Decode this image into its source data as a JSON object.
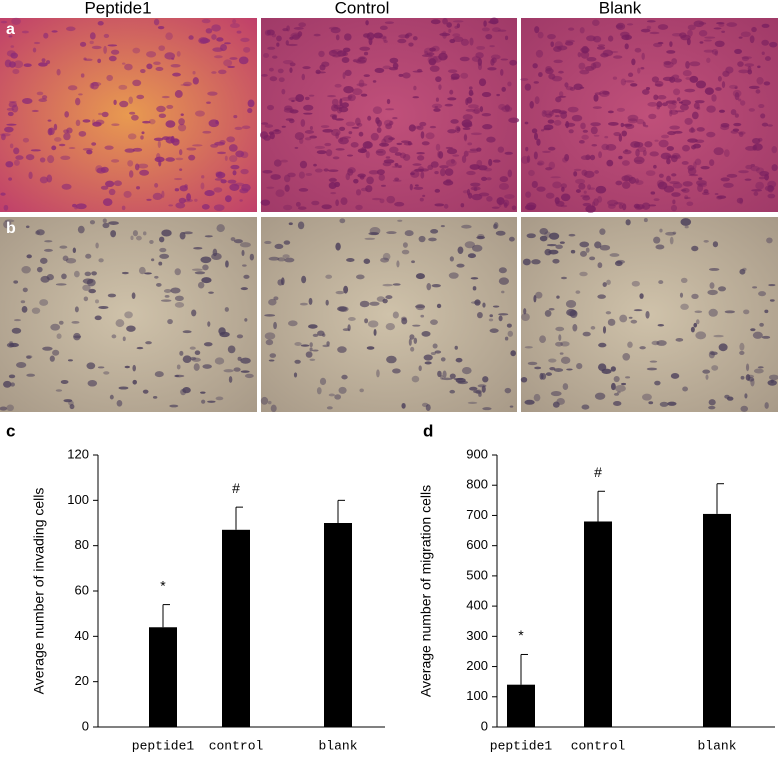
{
  "figure": {
    "column_labels": [
      "Peptide1",
      "Control",
      "Blank"
    ],
    "panel_labels": [
      "a",
      "b"
    ]
  },
  "chart_data": [
    {
      "type": "bar",
      "label": "c",
      "y_label": "Average number of invading cells",
      "categories": [
        "peptide1",
        "control",
        "blank"
      ],
      "values": [
        44,
        87,
        90
      ],
      "errors": [
        10,
        10,
        10
      ],
      "markers": [
        "*",
        "#",
        null
      ],
      "color": "#000000",
      "ylim": [
        0,
        120
      ],
      "yticks": [
        0,
        20,
        40,
        60,
        80,
        100,
        120
      ]
    },
    {
      "type": "bar",
      "label": "d",
      "y_label": "Average number of migration cells",
      "categories": [
        "peptide1",
        "control",
        "blank"
      ],
      "values": [
        140,
        680,
        705
      ],
      "errors": [
        100,
        100,
        100
      ],
      "markers": [
        "*",
        "#",
        null
      ],
      "color": "#000000",
      "ylim": [
        0,
        900
      ],
      "yticks": [
        0,
        100,
        200,
        300,
        400,
        500,
        600,
        700,
        800,
        900
      ]
    }
  ]
}
